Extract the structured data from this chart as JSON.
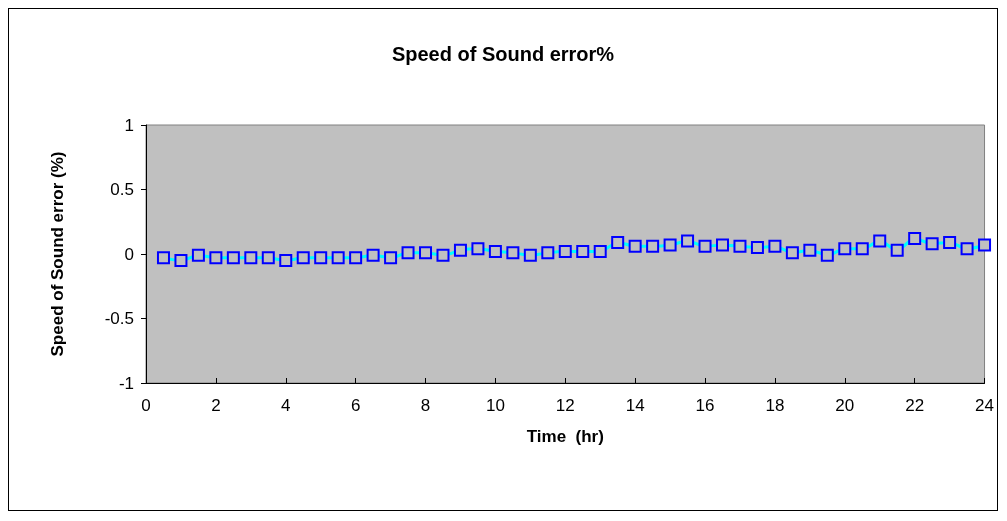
{
  "chart_data": {
    "type": "line",
    "title": "Speed of Sound error%",
    "xlabel": "Time  (hr)",
    "ylabel": "Speed of Sound error (%)",
    "x": [
      0.5,
      1,
      1.5,
      2,
      2.5,
      3,
      3.5,
      4,
      4.5,
      5,
      5.5,
      6,
      6.5,
      7,
      7.5,
      8,
      8.5,
      9,
      9.5,
      10,
      10.5,
      11,
      11.5,
      12,
      12.5,
      13,
      13.5,
      14,
      14.5,
      15,
      15.5,
      16,
      16.5,
      17,
      17.5,
      18,
      18.5,
      19,
      19.5,
      20,
      20.5,
      21,
      21.5,
      22,
      22.5,
      23,
      23.5,
      24
    ],
    "series": [
      {
        "color": "#00ffff",
        "values": [
          -0.03,
          -0.05,
          -0.01,
          -0.03,
          -0.03,
          -0.03,
          -0.03,
          -0.05,
          -0.03,
          -0.03,
          -0.03,
          -0.03,
          -0.01,
          -0.03,
          0.01,
          0.01,
          -0.01,
          0.03,
          0.04,
          0.02,
          0.01,
          -0.01,
          0.01,
          0.02,
          0.02,
          0.02,
          0.09,
          0.06,
          0.06,
          0.07,
          0.1,
          0.06,
          0.07,
          0.06,
          0.05,
          0.06,
          0.01,
          0.03,
          -0.01,
          0.04,
          0.04,
          0.1,
          0.03,
          0.12,
          0.08,
          0.09,
          0.04,
          0.07
        ]
      }
    ],
    "xlim": [
      0,
      24
    ],
    "xticks": [
      0,
      2,
      4,
      6,
      8,
      10,
      12,
      14,
      16,
      18,
      20,
      22,
      24
    ],
    "ylim": [
      -1,
      1
    ],
    "yticks": [
      -1,
      -0.5,
      0,
      0.5,
      1
    ],
    "grid": false,
    "marker": "square",
    "line_style": "solid"
  }
}
